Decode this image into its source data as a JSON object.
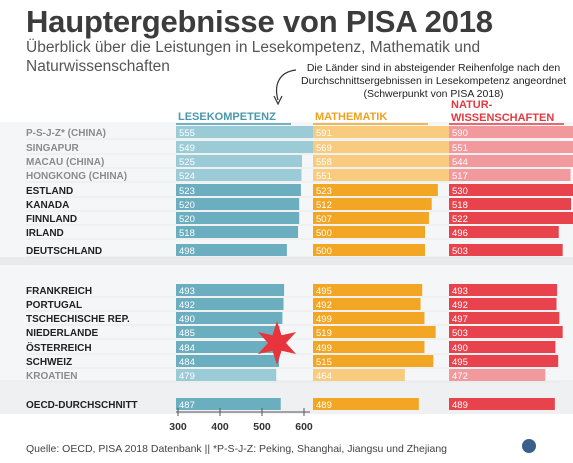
{
  "title": "Hauptergebnisse von PISA 2018",
  "subtitle": "Überblick über die Leistungen in Lesekompetenz, Mathematik und Naturwissenschaften",
  "note": "Die Länder sind in absteigender Reihenfolge nach den Durchschnittsergebnissen in Lesekompetenz angeordnet (Schwerpunkt von PISA 2018)",
  "source": "Quelle: OECD, PISA 2018 Datenbank  ||  *P-S-J-Z: Peking, Shanghai, Jiangsu und Zhejiang",
  "colors": {
    "reading": "#6aaec0",
    "reading_light": "#9ccbd8",
    "math": "#f3a623",
    "math_light": "#f8cb7e",
    "science": "#e8434c",
    "science_light": "#f1999d",
    "star": "#e8343d",
    "header_reading": "#4a98ad",
    "header_math": "#f0a020",
    "header_science": "#e23a43"
  },
  "chart_data": {
    "type": "bar",
    "columns": [
      "LESEKOMPETENZ",
      "MATHEMATIK",
      "NATUR-\nWISSENSCHAFTEN"
    ],
    "categories": [
      "P-S-J-Z* (CHINA)",
      "SINGAPUR",
      "MACAU (CHINA)",
      "HONGKONG (CHINA)",
      "ESTLAND",
      "KANADA",
      "FINNLAND",
      "IRLAND",
      "DEUTSCHLAND",
      "FRANKREICH",
      "PORTUGAL",
      "TSCHECHISCHE REP.",
      "NIEDERLANDE",
      "ÖSTERREICH",
      "SCHWEIZ",
      "KROATIEN",
      "OECD-DURCHSCHNITT"
    ],
    "series": [
      {
        "name": "LESEKOMPETENZ",
        "values": [
          555,
          549,
          525,
          524,
          523,
          520,
          520,
          518,
          498,
          493,
          492,
          490,
          485,
          484,
          484,
          479,
          487
        ]
      },
      {
        "name": "MATHEMATIK",
        "values": [
          591,
          569,
          558,
          551,
          523,
          512,
          507,
          500,
          500,
          495,
          492,
          499,
          519,
          499,
          515,
          464,
          489
        ]
      },
      {
        "name": "NATUR-WISSENSCHAFTEN",
        "values": [
          590,
          551,
          544,
          517,
          530,
          518,
          522,
          496,
          503,
          493,
          492,
          497,
          503,
          490,
          495,
          472,
          489
        ]
      }
    ],
    "xaxis_ticks": [
      300,
      400,
      500,
      600
    ],
    "highlight": "ÖSTERREICH"
  }
}
